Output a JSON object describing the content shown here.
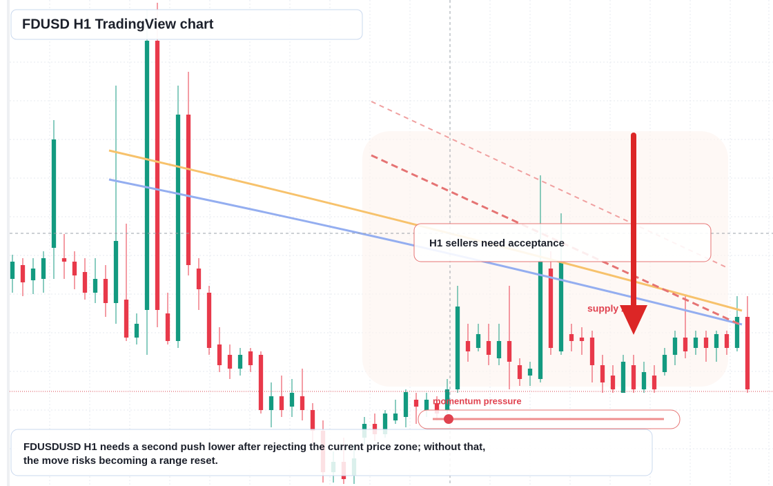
{
  "chart_data": {
    "type": "candlestick",
    "title": "FDUSD H1 TradingView chart",
    "annotations": {
      "callout": "H1 sellers need acceptance",
      "zone": "supply zone",
      "gauge": "momentum pressure",
      "note": [
        "FDUSDUSD H1 needs a second push lower after rejecting the current price zone; without that,",
        "the move risks becoming a range reset."
      ]
    },
    "up_color": "#139a80",
    "down_color": "#e8394a",
    "ylim": [
      0,
      70.4
    ],
    "ohlc": [
      [
        30.0,
        33.5,
        28.0,
        32.5
      ],
      [
        32.0,
        33.0,
        27.5,
        29.5
      ],
      [
        29.8,
        33.0,
        27.8,
        31.5
      ],
      [
        30.0,
        34.0,
        28.0,
        33.0
      ],
      [
        34.5,
        53.0,
        30.0,
        50.2
      ],
      [
        33.0,
        36.5,
        30.0,
        32.5
      ],
      [
        32.5,
        34.0,
        28.5,
        30.5
      ],
      [
        31.0,
        33.0,
        27.0,
        28.0
      ],
      [
        28.0,
        33.0,
        26.5,
        30.0
      ],
      [
        30.0,
        32.0,
        24.5,
        26.5
      ],
      [
        26.5,
        58.0,
        23.5,
        35.5
      ],
      [
        27.0,
        38.0,
        21.0,
        21.5
      ],
      [
        21.5,
        25.0,
        20.5,
        23.5
      ],
      [
        25.5,
        69.0,
        19.0,
        64.5
      ],
      [
        64.5,
        70.0,
        23.0,
        25.5
      ],
      [
        25.0,
        28.0,
        20.5,
        21.0
      ],
      [
        21.0,
        58.0,
        20.0,
        53.8
      ],
      [
        53.8,
        60.0,
        30.5,
        32.0
      ],
      [
        31.5,
        33.0,
        25.5,
        28.5
      ],
      [
        28.0,
        29.0,
        19.0,
        20.0
      ],
      [
        20.5,
        23.0,
        16.5,
        17.5
      ],
      [
        19.0,
        20.5,
        15.5,
        17.0
      ],
      [
        17.0,
        20.0,
        16.0,
        19.0
      ],
      [
        19.5,
        20.0,
        16.5,
        17.5
      ],
      [
        19.0,
        19.5,
        10.5,
        11.0
      ],
      [
        11.0,
        15.0,
        8.5,
        13.0
      ],
      [
        13.0,
        16.0,
        10.0,
        11.0
      ],
      [
        11.5,
        15.5,
        10.0,
        13.5
      ],
      [
        13.0,
        17.0,
        9.5,
        11.0
      ],
      [
        11.0,
        12.0,
        6.0,
        8.0
      ],
      [
        8.0,
        9.5,
        0.5,
        2.0
      ],
      [
        2.0,
        5.0,
        0.5,
        3.5
      ],
      [
        3.5,
        7.0,
        0.3,
        1.0
      ],
      [
        1.5,
        6.0,
        0.3,
        4.0
      ],
      [
        7.0,
        10.0,
        6.0,
        9.0
      ],
      [
        9.0,
        10.5,
        6.5,
        7.5
      ],
      [
        7.5,
        11.0,
        7.0,
        10.5
      ],
      [
        9.5,
        12.5,
        9.0,
        10.5
      ],
      [
        10.0,
        14.0,
        8.5,
        13.6
      ],
      [
        12.5,
        13.5,
        9.0,
        11.5
      ],
      [
        11.0,
        13.5,
        10.0,
        12.5
      ],
      [
        12.0,
        13.0,
        9.5,
        10.5
      ],
      [
        11.0,
        15.5,
        10.5,
        14.0
      ],
      [
        14.0,
        29.0,
        13.5,
        26.0
      ],
      [
        21.0,
        23.5,
        18.0,
        19.5
      ],
      [
        20.0,
        23.5,
        19.5,
        22.0
      ],
      [
        21.0,
        23.5,
        17.5,
        19.0
      ],
      [
        18.5,
        23.5,
        17.5,
        21.0
      ],
      [
        21.0,
        29.0,
        14.0,
        18.0
      ],
      [
        17.5,
        18.5,
        14.5,
        15.5
      ],
      [
        16.0,
        18.0,
        14.5,
        17.0
      ],
      [
        15.5,
        45.0,
        15.0,
        32.5
      ],
      [
        31.5,
        34.0,
        19.0,
        20.0
      ],
      [
        19.5,
        39.5,
        19.0,
        32.5
      ],
      [
        22.0,
        23.5,
        19.5,
        21.0
      ],
      [
        21.5,
        23.0,
        19.0,
        21.0
      ],
      [
        21.5,
        22.5,
        15.0,
        17.5
      ],
      [
        17.5,
        19.0,
        13.5,
        15.0
      ],
      [
        16.0,
        17.5,
        13.5,
        14.0
      ],
      [
        13.5,
        19.0,
        13.5,
        18.0
      ],
      [
        17.5,
        19.0,
        13.5,
        14.0
      ],
      [
        14.0,
        18.0,
        13.5,
        16.5
      ],
      [
        16.0,
        17.5,
        13.5,
        14.0
      ],
      [
        16.5,
        20.0,
        16.0,
        19.0
      ],
      [
        19.0,
        22.5,
        17.5,
        21.5
      ],
      [
        21.5,
        27.5,
        18.5,
        19.5
      ],
      [
        20.0,
        22.5,
        19.0,
        21.5
      ],
      [
        21.5,
        22.5,
        18.0,
        20.0
      ],
      [
        20.0,
        22.5,
        18.0,
        22.0
      ],
      [
        22.0,
        22.5,
        19.0,
        20.0
      ],
      [
        20.0,
        27.5,
        19.5,
        24.5
      ],
      [
        24.5,
        27.5,
        13.5,
        14.0
      ]
    ]
  }
}
